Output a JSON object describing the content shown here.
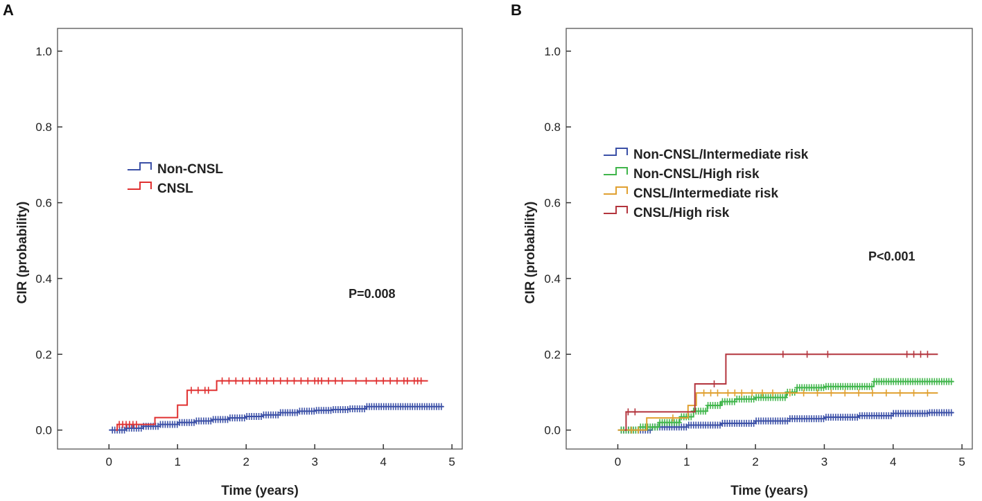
{
  "chart_data": [
    {
      "type": "line",
      "panel_label": "A",
      "title": "",
      "xlabel": "Time (years)",
      "ylabel": "CIR (probability)",
      "xlim": [
        -0.75,
        5.15
      ],
      "ylim": [
        -0.05,
        1.06
      ],
      "xticks": [
        0,
        1,
        2,
        3,
        4,
        5
      ],
      "xtick_labels": [
        "0",
        "1",
        "2",
        "3",
        "4",
        "5"
      ],
      "yticks": [
        0.0,
        0.2,
        0.4,
        0.6,
        0.8,
        1.0
      ],
      "ytick_labels": [
        "0.0",
        "0.2",
        "0.4",
        "0.6",
        "0.8",
        "1.0"
      ],
      "annotation": "P=0.008",
      "legend_position": "upper-left",
      "series": [
        {
          "name": "Non-CNSL",
          "color": "#3a4fa6",
          "points": [
            [
              0,
              0
            ],
            [
              0.25,
              0.005
            ],
            [
              0.5,
              0.01
            ],
            [
              0.75,
              0.015
            ],
            [
              1.0,
              0.02
            ],
            [
              1.25,
              0.024
            ],
            [
              1.5,
              0.028
            ],
            [
              1.75,
              0.032
            ],
            [
              2.0,
              0.036
            ],
            [
              2.25,
              0.04
            ],
            [
              2.5,
              0.046
            ],
            [
              2.75,
              0.05
            ],
            [
              3.0,
              0.052
            ],
            [
              3.25,
              0.054
            ],
            [
              3.5,
              0.056
            ],
            [
              3.75,
              0.062
            ],
            [
              4.0,
              0.062
            ],
            [
              4.5,
              0.062
            ],
            [
              4.88,
              0.062
            ]
          ],
          "censor_density": "dense"
        },
        {
          "name": "CNSL",
          "color": "#e03030",
          "points": [
            [
              0.1,
              0
            ],
            [
              0.12,
              0.015
            ],
            [
              0.65,
              0.015
            ],
            [
              0.67,
              0.033
            ],
            [
              0.98,
              0.033
            ],
            [
              1.0,
              0.066
            ],
            [
              1.12,
              0.066
            ],
            [
              1.14,
              0.105
            ],
            [
              1.55,
              0.105
            ],
            [
              1.57,
              0.13
            ],
            [
              4.65,
              0.13
            ]
          ],
          "censor_marks": [
            0.15,
            0.2,
            0.25,
            0.3,
            0.35,
            0.4,
            1.2,
            1.3,
            1.4,
            1.45,
            1.65,
            1.75,
            1.85,
            1.95,
            2.05,
            2.15,
            2.2,
            2.3,
            2.4,
            2.5,
            2.6,
            2.7,
            2.8,
            2.9,
            3.0,
            3.05,
            3.1,
            3.2,
            3.3,
            3.4,
            3.6,
            3.75,
            3.9,
            4.0,
            4.1,
            4.2,
            4.3,
            4.35,
            4.45,
            4.5,
            4.55
          ]
        }
      ]
    },
    {
      "type": "line",
      "panel_label": "B",
      "title": "",
      "xlabel": "Time (years)",
      "ylabel": "CIR (probability)",
      "xlim": [
        -0.75,
        5.15
      ],
      "ylim": [
        -0.05,
        1.06
      ],
      "xticks": [
        0,
        1,
        2,
        3,
        4,
        5
      ],
      "xtick_labels": [
        "0",
        "1",
        "2",
        "3",
        "4",
        "5"
      ],
      "yticks": [
        0.0,
        0.2,
        0.4,
        0.6,
        0.8,
        1.0
      ],
      "ytick_labels": [
        "0.0",
        "0.2",
        "0.4",
        "0.6",
        "0.8",
        "1.0"
      ],
      "annotation": "P<0.001",
      "legend_position": "upper-left",
      "series": [
        {
          "name": "Non-CNSL/Intermediate risk",
          "color": "#3a4fa6",
          "points": [
            [
              0,
              0
            ],
            [
              0.5,
              0.008
            ],
            [
              1.0,
              0.013
            ],
            [
              1.5,
              0.018
            ],
            [
              2.0,
              0.024
            ],
            [
              2.5,
              0.03
            ],
            [
              3.0,
              0.034
            ],
            [
              3.5,
              0.038
            ],
            [
              4.0,
              0.044
            ],
            [
              4.5,
              0.046
            ],
            [
              4.88,
              0.046
            ]
          ],
          "censor_density": "dense"
        },
        {
          "name": "Non-CNSL/High risk",
          "color": "#3fb54a",
          "points": [
            [
              0,
              0
            ],
            [
              0.3,
              0.008
            ],
            [
              0.6,
              0.02
            ],
            [
              0.9,
              0.035
            ],
            [
              1.1,
              0.05
            ],
            [
              1.3,
              0.065
            ],
            [
              1.5,
              0.075
            ],
            [
              1.7,
              0.082
            ],
            [
              2.0,
              0.086
            ],
            [
              2.35,
              0.086
            ],
            [
              2.45,
              0.1
            ],
            [
              2.6,
              0.112
            ],
            [
              3.0,
              0.115
            ],
            [
              3.6,
              0.115
            ],
            [
              3.72,
              0.128
            ],
            [
              4.88,
              0.128
            ]
          ],
          "censor_density": "dense"
        },
        {
          "name": "CNSL/Intermediate risk",
          "color": "#e0a030",
          "points": [
            [
              0,
              0
            ],
            [
              0.4,
              0
            ],
            [
              0.42,
              0.032
            ],
            [
              1.0,
              0.032
            ],
            [
              1.02,
              0.065
            ],
            [
              1.12,
              0.065
            ],
            [
              1.14,
              0.098
            ],
            [
              4.65,
              0.098
            ]
          ],
          "censor_marks": [
            0.2,
            0.3,
            0.8,
            1.25,
            1.35,
            1.45,
            1.6,
            1.7,
            1.8,
            1.95,
            2.1,
            2.25,
            2.5,
            2.7,
            2.9,
            3.1,
            3.3,
            3.5,
            3.7,
            3.9,
            4.1,
            4.3,
            4.5
          ]
        },
        {
          "name": "CNSL/High risk",
          "color": "#b3343d",
          "points": [
            [
              0.1,
              0
            ],
            [
              0.12,
              0.048
            ],
            [
              1.1,
              0.048
            ],
            [
              1.12,
              0.122
            ],
            [
              1.55,
              0.122
            ],
            [
              1.57,
              0.2
            ],
            [
              4.65,
              0.2
            ]
          ],
          "censor_marks": [
            0.15,
            0.25,
            1.4,
            2.4,
            2.75,
            3.05,
            4.2,
            4.3,
            4.4,
            4.5
          ]
        }
      ]
    }
  ]
}
